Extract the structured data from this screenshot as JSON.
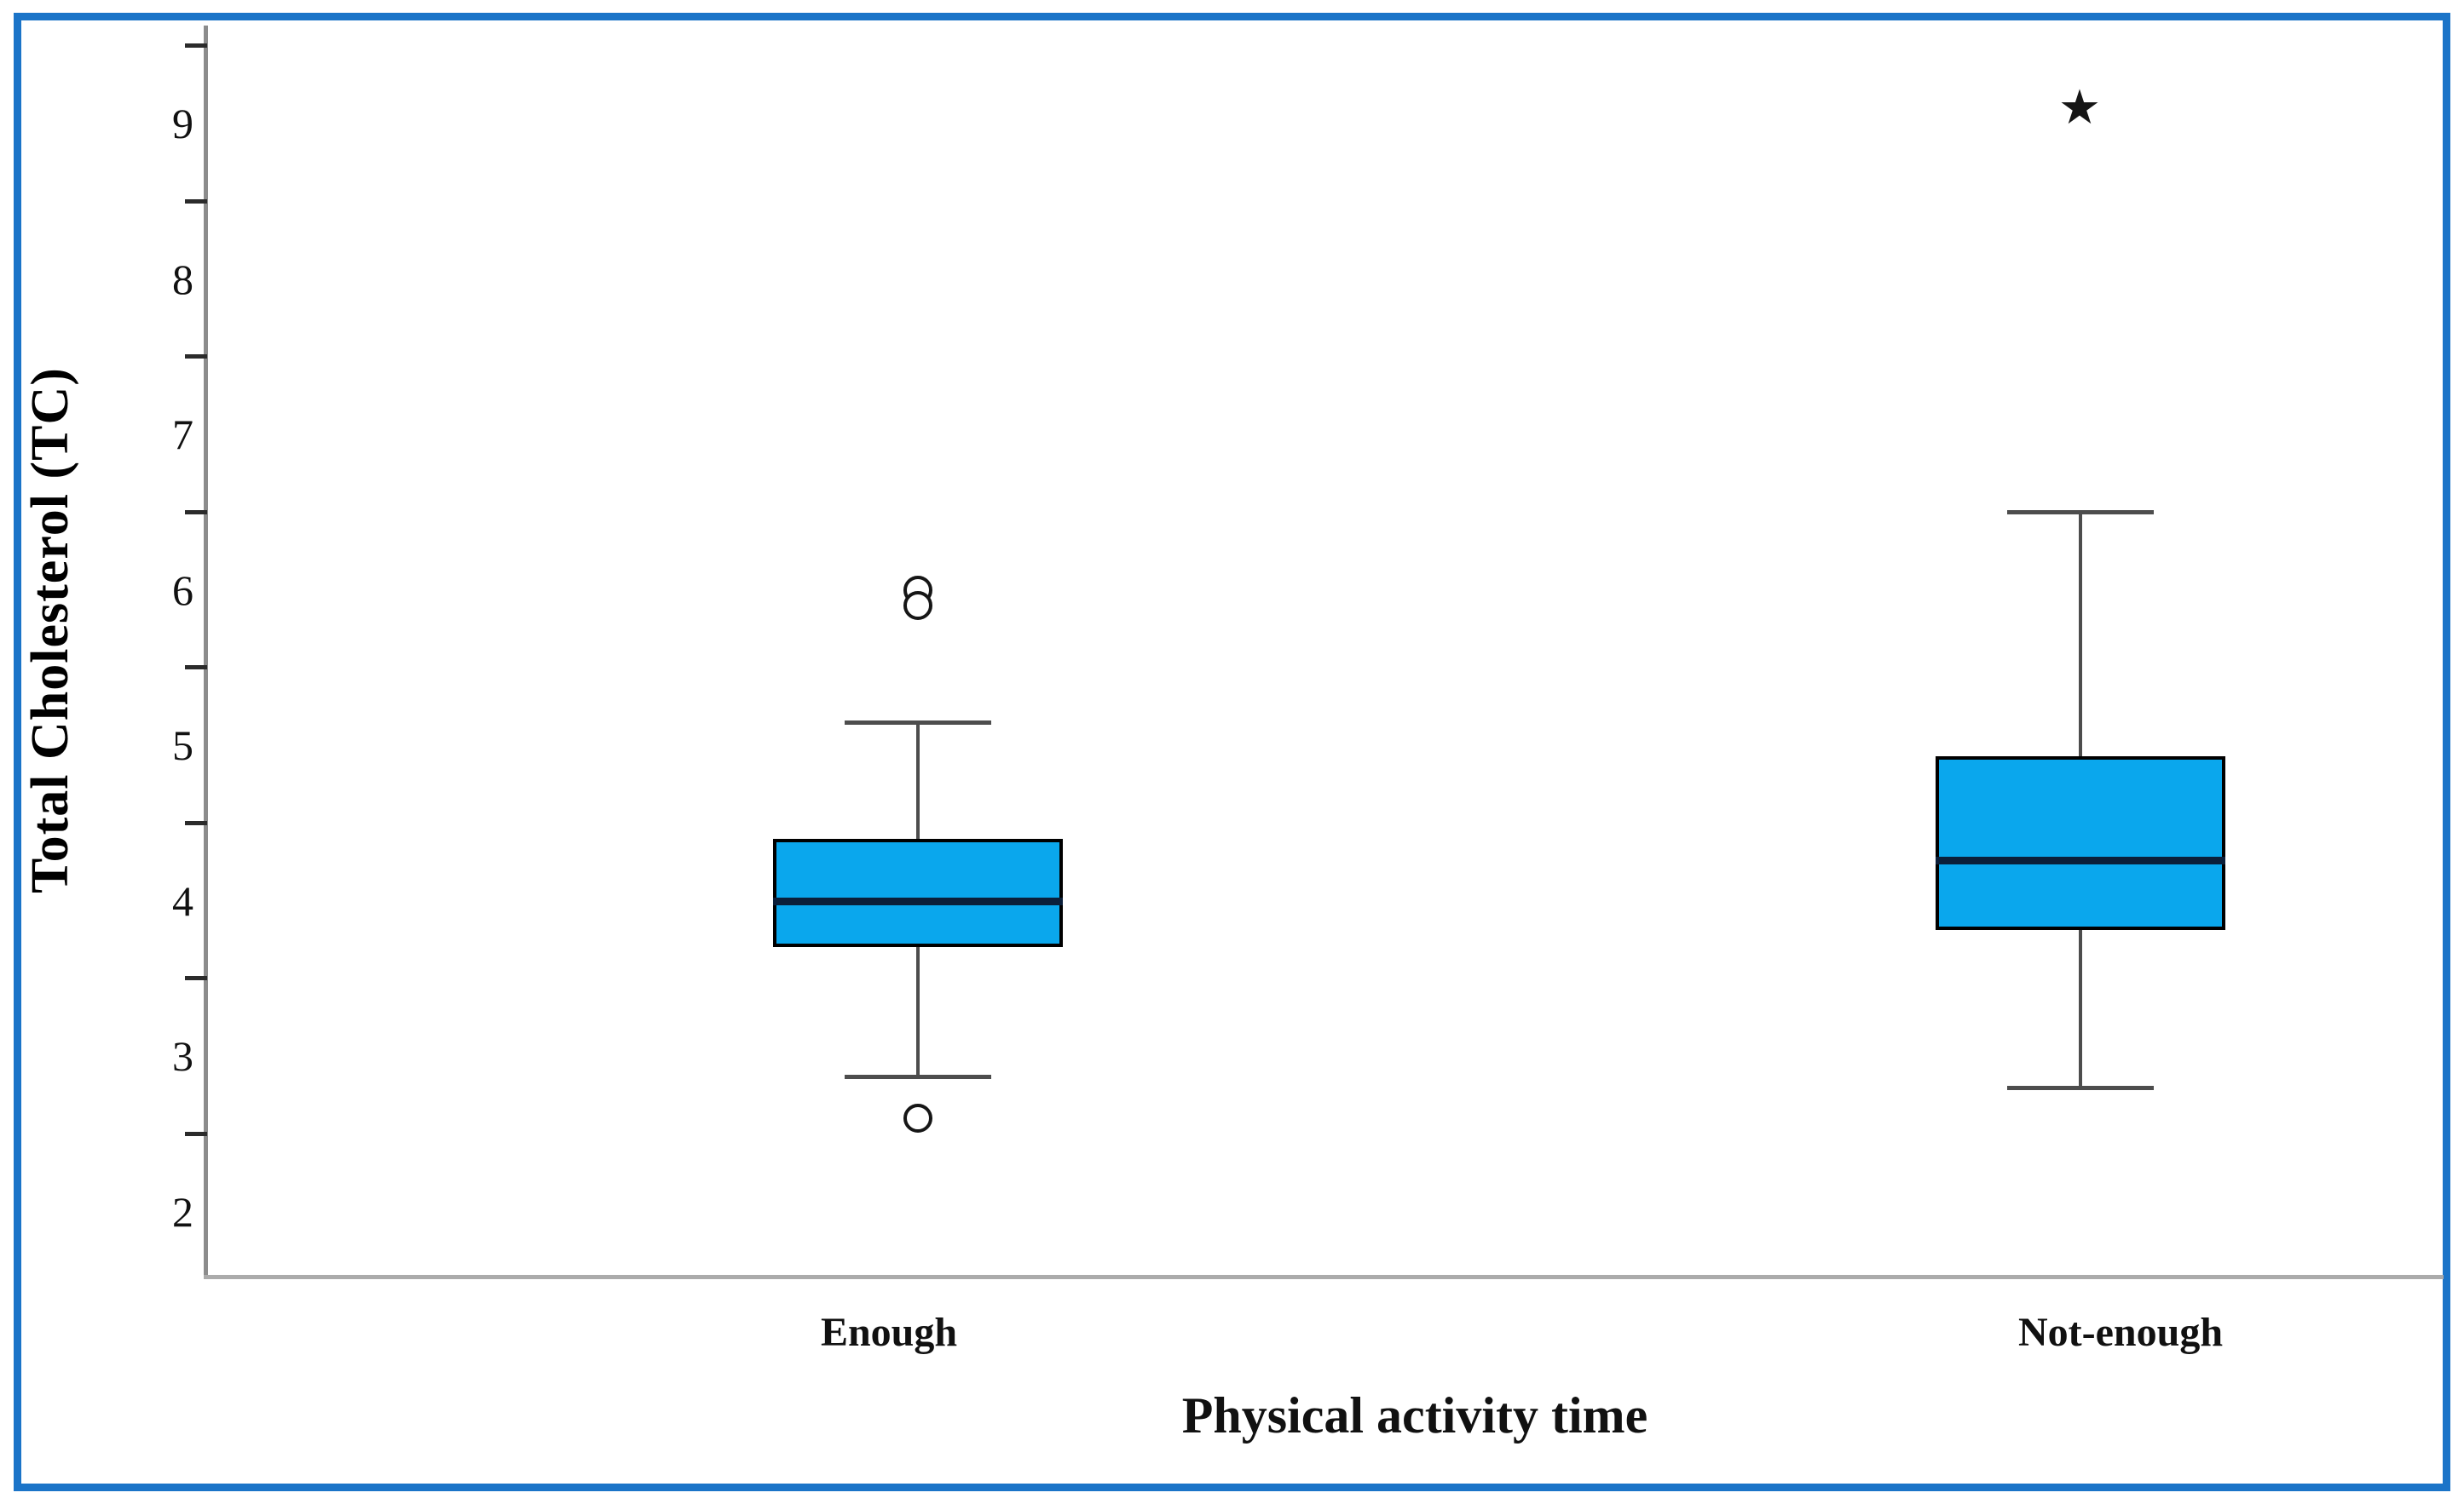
{
  "figure": {
    "border_color": "#1B74C8",
    "background": "#ffffff"
  },
  "chart_data": {
    "type": "boxplot",
    "title": "",
    "xlabel": "Physical activity time",
    "ylabel": "Total Cholesterol (TC)",
    "ylim": [
      1.6,
      9.65
    ],
    "ytick_labels": [
      "2",
      "3",
      "4",
      "5",
      "6",
      "7",
      "8",
      "9"
    ],
    "ytick_label_values": [
      2,
      3,
      4,
      5,
      6,
      7,
      8,
      9
    ],
    "ytick_mark_values": [
      2.5,
      3.5,
      4.5,
      5.5,
      6.5,
      7.5,
      8.5,
      9.5
    ],
    "grid": false,
    "legend": false,
    "categories": [
      "Enough",
      "Not-enough"
    ],
    "series": [
      {
        "category": "Enough",
        "whisker_low": 2.87,
        "q1": 3.7,
        "median": 4.0,
        "q3": 4.4,
        "whisker_high": 5.15,
        "outliers": [
          {
            "value": 6.0,
            "marker": "circle"
          },
          {
            "value": 5.9,
            "marker": "circle"
          },
          {
            "value": 2.6,
            "marker": "circle"
          }
        ]
      },
      {
        "category": "Not-enough",
        "whisker_low": 2.8,
        "q1": 3.81,
        "median": 4.26,
        "q3": 4.93,
        "whisker_high": 6.5,
        "outliers": [
          {
            "value": 9.1,
            "marker": "star"
          }
        ]
      }
    ],
    "box_fill": "#0AA7ED",
    "box_border": "#000000",
    "median_color": "#0B1F3A",
    "whisker_color": "#4d4d4d",
    "axis_color": "#9a9a9a",
    "outlier_marker_glyph": "star-icon"
  }
}
